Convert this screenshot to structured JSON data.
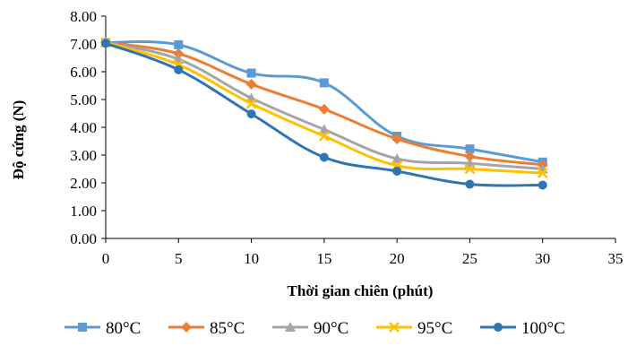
{
  "chart_data": {
    "type": "line",
    "title": "",
    "xlabel": "Thời gian chiên (phút)",
    "ylabel": "Độ cứng (N)",
    "xlim": [
      0,
      35
    ],
    "ylim": [
      0,
      8
    ],
    "x_ticks": [
      "0",
      "5",
      "10",
      "15",
      "20",
      "25",
      "30",
      "35"
    ],
    "y_ticks": [
      "0.00",
      "1.00",
      "2.00",
      "3.00",
      "4.00",
      "5.00",
      "6.00",
      "7.00",
      "8.00"
    ],
    "grid": false,
    "legend_position": "bottom",
    "x": [
      0,
      5,
      10,
      15,
      20,
      25,
      30
    ],
    "series": [
      {
        "name": "80°C",
        "color": "#5b9bd5",
        "marker": "square",
        "values": [
          7.05,
          6.97,
          5.95,
          5.6,
          3.68,
          3.22,
          2.75
        ]
      },
      {
        "name": "85°C",
        "color": "#ed7d31",
        "marker": "diamond",
        "values": [
          7.05,
          6.65,
          5.55,
          4.65,
          3.58,
          2.95,
          2.65
        ]
      },
      {
        "name": "90°C",
        "color": "#a5a5a5",
        "marker": "triangle",
        "values": [
          7.05,
          6.45,
          5.05,
          3.92,
          2.87,
          2.7,
          2.5
        ]
      },
      {
        "name": "95°C",
        "color": "#ffc000",
        "marker": "cross",
        "values": [
          7.05,
          6.25,
          4.85,
          3.68,
          2.62,
          2.5,
          2.35
        ]
      },
      {
        "name": "100°C",
        "color": "#2e75b6",
        "marker": "circle",
        "values": [
          7.02,
          6.07,
          4.48,
          2.92,
          2.42,
          1.95,
          1.92
        ]
      }
    ]
  }
}
